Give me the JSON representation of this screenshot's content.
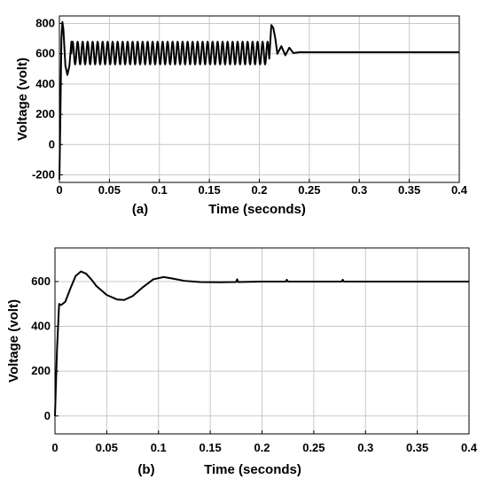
{
  "chart_data": [
    {
      "type": "line",
      "panel_label": "(a)",
      "xlabel": "Time (seconds)",
      "ylabel": "Voltage (volt)",
      "xlim": [
        0,
        0.4
      ],
      "ylim": [
        -250,
        850
      ],
      "grid": true,
      "x_ticks": [
        0,
        0.05,
        0.1,
        0.15,
        0.2,
        0.25,
        0.3,
        0.35,
        0.4
      ],
      "x_tick_labels": [
        "0",
        "0.05",
        "0.1",
        "0.15",
        "0.2",
        "0.25",
        "0.3",
        "0.35",
        "0.4"
      ],
      "y_ticks": [
        -200,
        0,
        200,
        400,
        600,
        800
      ],
      "y_tick_labels": [
        "-200",
        "0",
        "200",
        "400",
        "600",
        "800"
      ],
      "series": [
        {
          "x": [
            0,
            0.001,
            0.002,
            0.003,
            0.004,
            0.006,
            0.008,
            0.01,
            0.012,
            0.2,
            0.21,
            0.212,
            0.214,
            0.216,
            0.218,
            0.222,
            0.226,
            0.23,
            0.234,
            0.24,
            0.4
          ],
          "y": [
            -230,
            200,
            700,
            810,
            760,
            520,
            460,
            520,
            680,
            610,
            620,
            790,
            770,
            700,
            600,
            650,
            590,
            640,
            605,
            610,
            610
          ],
          "oscillation": {
            "x_start": 0.012,
            "x_end": 0.21,
            "center": 605,
            "amplitude": 75,
            "period": 0.005
          }
        }
      ]
    },
    {
      "type": "line",
      "panel_label": "(b)",
      "xlabel": "Time (seconds)",
      "ylabel": "Voltage (volt)",
      "xlim": [
        0,
        0.4
      ],
      "ylim": [
        -80,
        750
      ],
      "grid": true,
      "x_ticks": [
        0,
        0.05,
        0.1,
        0.15,
        0.2,
        0.25,
        0.3,
        0.35,
        0.4
      ],
      "x_tick_labels": [
        "0",
        "0.05",
        "0.1",
        "0.15",
        "0.2",
        "0.25",
        "0.3",
        "0.35",
        "0.4"
      ],
      "y_ticks": [
        0,
        200,
        400,
        600
      ],
      "y_tick_labels": [
        "0",
        "200",
        "400",
        "600"
      ],
      "series": [
        {
          "x": [
            0,
            0.002,
            0.004,
            0.006,
            0.01,
            0.015,
            0.02,
            0.025,
            0.03,
            0.035,
            0.04,
            0.05,
            0.06,
            0.067,
            0.075,
            0.085,
            0.095,
            0.105,
            0.115,
            0.125,
            0.14,
            0.16,
            0.175,
            0.176,
            0.177,
            0.2,
            0.223,
            0.224,
            0.225,
            0.25,
            0.277,
            0.278,
            0.279,
            0.3,
            0.35,
            0.4
          ],
          "y": [
            0,
            300,
            500,
            495,
            510,
            570,
            625,
            645,
            635,
            610,
            580,
            540,
            520,
            518,
            535,
            575,
            610,
            620,
            612,
            603,
            598,
            597,
            598,
            610,
            598,
            600,
            600,
            608,
            600,
            600,
            600,
            608,
            600,
            600,
            600,
            600
          ]
        }
      ]
    }
  ]
}
